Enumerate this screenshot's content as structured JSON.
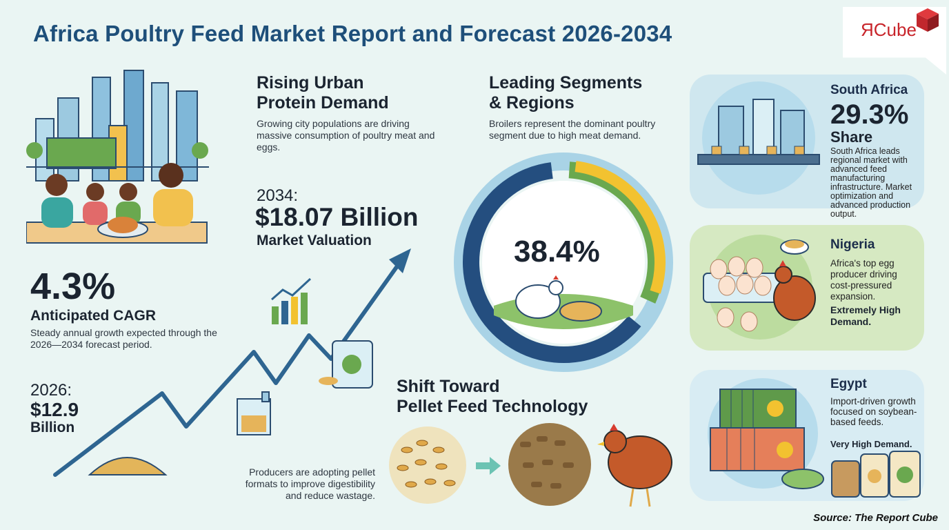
{
  "title": "Africa Poultry Feed Market Report and Forecast 2026-2034",
  "logo": {
    "text": "ЯCube"
  },
  "urban": {
    "heading_line1": "Rising Urban",
    "heading_line2": "Protein Demand",
    "body": "Growing city populations are driving massive consumption of poultry meat and eggs."
  },
  "forecast_2034": {
    "year": "2034:",
    "value": "$18.07 Billion",
    "label": "Market Valuation"
  },
  "cagr": {
    "value": "4.3%",
    "label": "Anticipated CAGR",
    "body": "Steady annual growth expected through the 2026—2034 forecast period."
  },
  "base_2026": {
    "year": "2026:",
    "value_line1": "$12.9",
    "value_line2": "Billion"
  },
  "segments": {
    "heading_line1": "Leading Segments",
    "heading_line2": "& Regions",
    "body": "Broilers represent the dominant poultry segment due to high meat demand.",
    "center_value": "38.4%"
  },
  "pellet": {
    "heading_line1": "Shift Toward",
    "heading_line2": "Pellet Feed Technology",
    "body": "Producers are adopting pellet formats to improve digestibility and reduce wastage."
  },
  "regions": [
    {
      "name": "South Africa",
      "value": "29.3%",
      "value_label": "Share",
      "body": "South Africa leads regional market with advanced feed manufacturing infrastructure. Market optimization and advanced production output.",
      "emphasis": ""
    },
    {
      "name": "Nigeria",
      "value": "",
      "value_label": "",
      "body": "Africa's top egg producer driving cost-pressured expansion.",
      "emphasis": "Extremely High Demand."
    },
    {
      "name": "Egypt",
      "value": "",
      "value_label": "",
      "body": "Import-driven growth focused on soybean-based feeds.",
      "emphasis": "Very High Demand."
    }
  ],
  "source": "Source: The Report Cube",
  "colors": {
    "title": "#1e4f7a",
    "accent_blue": "#2e6591",
    "donut_navy": "#244e7f",
    "donut_green": "#6aa84f",
    "donut_yellow": "#f2c230",
    "donut_light": "#a9d3e6",
    "nigeria_card": "#d6e9c2",
    "sa_card": "#cfe7ef",
    "egypt_card": "#d8ecf3"
  },
  "chart_data": {
    "type": "pie",
    "center_label": "38.4%",
    "slices": [
      {
        "value": 38.4,
        "color": "#6aa84f"
      }
    ],
    "growth_line": {
      "x": [
        "2026",
        "2034"
      ],
      "values": [
        12.9,
        18.07
      ],
      "unit": "$ Billion"
    }
  }
}
